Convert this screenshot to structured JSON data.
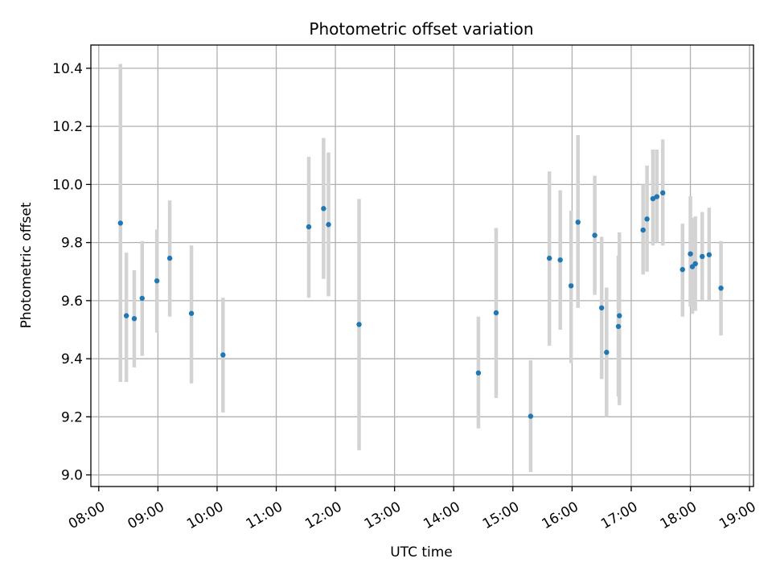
{
  "chart_data": {
    "type": "scatter",
    "title": "Photometric offset variation",
    "xlabel": "UTC time",
    "ylabel": "Photometric offset",
    "x_axis_type": "time",
    "x_unit": "hours (UTC)",
    "xlim": [
      "07:52",
      "19:04"
    ],
    "ylim": [
      8.96,
      10.48
    ],
    "grid": true,
    "x_tick_labels": [
      "08:00",
      "09:00",
      "10:00",
      "11:00",
      "12:00",
      "13:00",
      "14:00",
      "15:00",
      "16:00",
      "17:00",
      "18:00",
      "19:00"
    ],
    "y_ticks": [
      9.0,
      9.2,
      9.4,
      9.6,
      9.8,
      10.0,
      10.2,
      10.4
    ],
    "y_tick_labels": [
      "9.0",
      "9.2",
      "9.4",
      "9.6",
      "9.8",
      "10.0",
      "10.2",
      "10.4"
    ],
    "colors": {
      "points": "#1f77b4",
      "errorbars": "#d3d3d3",
      "grid": "#b0b0b0"
    },
    "series": [
      {
        "points": [
          {
            "x": "08:22",
            "y": 9.867,
            "yerr_low": 9.32,
            "yerr_high": 10.415
          },
          {
            "x": "08:28",
            "y": 9.548,
            "yerr_low": 9.32,
            "yerr_high": 9.765
          },
          {
            "x": "08:36",
            "y": 9.538,
            "yerr_low": 9.37,
            "yerr_high": 9.705
          },
          {
            "x": "08:44",
            "y": 9.608,
            "yerr_low": 9.41,
            "yerr_high": 9.805
          },
          {
            "x": "08:59",
            "y": 9.668,
            "yerr_low": 9.49,
            "yerr_high": 9.845
          },
          {
            "x": "09:12",
            "y": 9.746,
            "yerr_low": 9.545,
            "yerr_high": 9.945
          },
          {
            "x": "09:34",
            "y": 9.556,
            "yerr_low": 9.315,
            "yerr_high": 9.79
          },
          {
            "x": "10:06",
            "y": 9.413,
            "yerr_low": 9.215,
            "yerr_high": 9.61
          },
          {
            "x": "11:33",
            "y": 9.854,
            "yerr_low": 9.61,
            "yerr_high": 10.095
          },
          {
            "x": "11:48",
            "y": 9.917,
            "yerr_low": 9.675,
            "yerr_high": 10.16
          },
          {
            "x": "11:53",
            "y": 9.862,
            "yerr_low": 9.615,
            "yerr_high": 10.11
          },
          {
            "x": "12:24",
            "y": 9.518,
            "yerr_low": 9.085,
            "yerr_high": 9.95
          },
          {
            "x": "14:25",
            "y": 9.351,
            "yerr_low": 9.16,
            "yerr_high": 9.545
          },
          {
            "x": "14:43",
            "y": 9.558,
            "yerr_low": 9.265,
            "yerr_high": 9.85
          },
          {
            "x": "15:18",
            "y": 9.202,
            "yerr_low": 9.01,
            "yerr_high": 9.395
          },
          {
            "x": "15:37",
            "y": 9.746,
            "yerr_low": 9.445,
            "yerr_high": 10.045
          },
          {
            "x": "15:48",
            "y": 9.74,
            "yerr_low": 9.5,
            "yerr_high": 9.98
          },
          {
            "x": "15:59",
            "y": 9.651,
            "yerr_low": 9.385,
            "yerr_high": 9.91
          },
          {
            "x": "16:06",
            "y": 9.87,
            "yerr_low": 9.575,
            "yerr_high": 10.17
          },
          {
            "x": "16:23",
            "y": 9.825,
            "yerr_low": 9.62,
            "yerr_high": 10.03
          },
          {
            "x": "16:30",
            "y": 9.575,
            "yerr_low": 9.33,
            "yerr_high": 9.82
          },
          {
            "x": "16:35",
            "y": 9.422,
            "yerr_low": 9.2,
            "yerr_high": 9.645
          },
          {
            "x": "16:47",
            "y": 9.511,
            "yerr_low": 9.27,
            "yerr_high": 9.755
          },
          {
            "x": "16:48",
            "y": 9.548,
            "yerr_low": 9.24,
            "yerr_high": 9.835
          },
          {
            "x": "17:12",
            "y": 9.843,
            "yerr_low": 9.69,
            "yerr_high": 10.0
          },
          {
            "x": "17:16",
            "y": 9.881,
            "yerr_low": 9.7,
            "yerr_high": 10.065
          },
          {
            "x": "17:22",
            "y": 9.951,
            "yerr_low": 9.79,
            "yerr_high": 10.12
          },
          {
            "x": "17:26",
            "y": 9.958,
            "yerr_low": 9.8,
            "yerr_high": 10.12
          },
          {
            "x": "17:32",
            "y": 9.971,
            "yerr_low": 9.79,
            "yerr_high": 10.155
          },
          {
            "x": "17:52",
            "y": 9.707,
            "yerr_low": 9.545,
            "yerr_high": 9.865
          },
          {
            "x": "18:00",
            "y": 9.761,
            "yerr_low": 9.58,
            "yerr_high": 9.96
          },
          {
            "x": "18:02",
            "y": 9.717,
            "yerr_low": 9.555,
            "yerr_high": 9.885
          },
          {
            "x": "18:05",
            "y": 9.727,
            "yerr_low": 9.565,
            "yerr_high": 9.89
          },
          {
            "x": "18:12",
            "y": 9.752,
            "yerr_low": 9.6,
            "yerr_high": 9.905
          },
          {
            "x": "18:19",
            "y": 9.758,
            "yerr_low": 9.6,
            "yerr_high": 9.92
          },
          {
            "x": "18:31",
            "y": 9.643,
            "yerr_low": 9.48,
            "yerr_high": 9.805
          }
        ]
      }
    ]
  }
}
